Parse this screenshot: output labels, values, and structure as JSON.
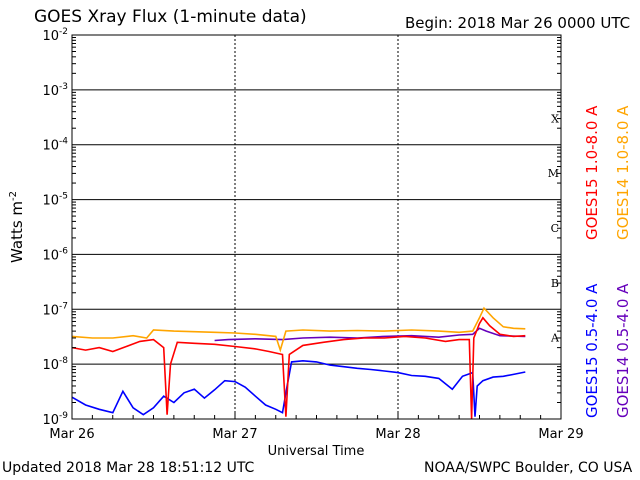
{
  "header": {
    "title": "GOES Xray Flux (1-minute data)",
    "begin": "Begin:  2018 Mar 26 0000 UTC"
  },
  "footer": {
    "updated": "Updated 2018 Mar 28 18:51:12 UTC",
    "credit": "NOAA/SWPC Boulder, CO USA"
  },
  "colors": {
    "goes15_long": "#ff0000",
    "goes14_long": "#ffa500",
    "goes15_short": "#0000ff",
    "goes14_short": "#6600bb"
  },
  "chart_data": {
    "type": "line",
    "title": "GOES Xray Flux (1-minute data)",
    "xlabel": "Universal Time",
    "ylabel": "Watts m",
    "ylabel_exponent": "-2",
    "y_scale": "log",
    "ylim": [
      1e-09,
      0.01
    ],
    "xlim": [
      "2018-03-26T00:00",
      "2018-03-29T00:00"
    ],
    "grid": true,
    "x_ticks": [
      {
        "x": "2018-03-26T00:00",
        "label": "Mar 26"
      },
      {
        "x": "2018-03-27T00:00",
        "label": "Mar 27"
      },
      {
        "x": "2018-03-28T00:00",
        "label": "Mar 28"
      },
      {
        "x": "2018-03-29T00:00",
        "label": "Mar 29"
      }
    ],
    "y_ticks": [
      {
        "y": 1e-09,
        "base": "10",
        "exp": "-9"
      },
      {
        "y": 1e-08,
        "base": "10",
        "exp": "-8"
      },
      {
        "y": 1e-07,
        "base": "10",
        "exp": "-7"
      },
      {
        "y": 1e-06,
        "base": "10",
        "exp": "-6"
      },
      {
        "y": 1e-05,
        "base": "10",
        "exp": "-5"
      },
      {
        "y": 0.0001,
        "base": "10",
        "exp": "-4"
      },
      {
        "y": 0.001,
        "base": "10",
        "exp": "-3"
      },
      {
        "y": 0.01,
        "base": "10",
        "exp": "-2"
      }
    ],
    "flare_classes": [
      {
        "label": "A",
        "lower": 1e-08,
        "upper": 1e-07
      },
      {
        "label": "B",
        "lower": 1e-07,
        "upper": 1e-06
      },
      {
        "label": "C",
        "lower": 1e-06,
        "upper": 1e-05
      },
      {
        "label": "M",
        "lower": 1e-05,
        "upper": 0.0001
      },
      {
        "label": "X",
        "lower": 0.0001,
        "upper": 0.001
      }
    ],
    "series": [
      {
        "name": "GOES15 0.5-4.0 A",
        "color": "#0000ff",
        "points": [
          [
            "2018-03-26T00:00",
            2.5e-09
          ],
          [
            "2018-03-26T02:00",
            1.8e-09
          ],
          [
            "2018-03-26T04:00",
            1.5e-09
          ],
          [
            "2018-03-26T06:00",
            1.3e-09
          ],
          [
            "2018-03-26T07:30",
            3.2e-09
          ],
          [
            "2018-03-26T09:00",
            1.6e-09
          ],
          [
            "2018-03-26T10:30",
            1.2e-09
          ],
          [
            "2018-03-26T12:00",
            1.6e-09
          ],
          [
            "2018-03-26T13:30",
            2.6e-09
          ],
          [
            "2018-03-26T15:00",
            2e-09
          ],
          [
            "2018-03-26T16:30",
            3e-09
          ],
          [
            "2018-03-26T18:00",
            3.5e-09
          ],
          [
            "2018-03-26T19:30",
            2.4e-09
          ],
          [
            "2018-03-26T21:00",
            3.4e-09
          ],
          [
            "2018-03-26T22:30",
            5e-09
          ],
          [
            "2018-03-27T00:00",
            4.8e-09
          ],
          [
            "2018-03-27T01:30",
            3.8e-09
          ],
          [
            "2018-03-27T03:00",
            2.6e-09
          ],
          [
            "2018-03-27T04:30",
            1.8e-09
          ],
          [
            "2018-03-27T06:00",
            1.5e-09
          ],
          [
            "2018-03-27T07:00",
            1.3e-09
          ],
          [
            "2018-03-27T07:40",
            4e-09
          ],
          [
            "2018-03-27T08:20",
            1.1e-08
          ],
          [
            "2018-03-27T10:00",
            1.15e-08
          ],
          [
            "2018-03-27T12:00",
            1.1e-08
          ],
          [
            "2018-03-27T14:00",
            9.6e-09
          ],
          [
            "2018-03-27T16:00",
            9e-09
          ],
          [
            "2018-03-27T18:00",
            8.4e-09
          ],
          [
            "2018-03-27T20:00",
            8e-09
          ],
          [
            "2018-03-27T22:00",
            7.5e-09
          ],
          [
            "2018-03-28T00:00",
            7e-09
          ],
          [
            "2018-03-28T02:00",
            6.2e-09
          ],
          [
            "2018-03-28T04:00",
            6e-09
          ],
          [
            "2018-03-28T06:00",
            5.5e-09
          ],
          [
            "2018-03-28T08:00",
            3.5e-09
          ],
          [
            "2018-03-28T09:30",
            6e-09
          ],
          [
            "2018-03-28T11:00",
            7e-09
          ],
          [
            "2018-03-28T11:20",
            1.1e-09
          ],
          [
            "2018-03-28T11:40",
            4e-09
          ],
          [
            "2018-03-28T12:30",
            5e-09
          ],
          [
            "2018-03-28T14:00",
            5.8e-09
          ],
          [
            "2018-03-28T15:30",
            6e-09
          ],
          [
            "2018-03-28T17:00",
            6.5e-09
          ],
          [
            "2018-03-28T18:45",
            7.2e-09
          ]
        ]
      },
      {
        "name": "GOES14 0.5-4.0 A",
        "color": "#6600bb",
        "points": [
          [
            "2018-03-26T21:00",
            2.7e-08
          ],
          [
            "2018-03-26T23:00",
            2.8e-08
          ],
          [
            "2018-03-27T03:00",
            2.9e-08
          ],
          [
            "2018-03-27T07:00",
            2.8e-08
          ],
          [
            "2018-03-27T10:00",
            3e-08
          ],
          [
            "2018-03-27T14:00",
            3.1e-08
          ],
          [
            "2018-03-27T18:00",
            3e-08
          ],
          [
            "2018-03-27T22:00",
            3.2e-08
          ],
          [
            "2018-03-28T02:00",
            3.3e-08
          ],
          [
            "2018-03-28T06:00",
            3.1e-08
          ],
          [
            "2018-03-28T09:00",
            3.4e-08
          ],
          [
            "2018-03-28T11:00",
            3.5e-08
          ],
          [
            "2018-03-28T12:00",
            4.5e-08
          ],
          [
            "2018-03-28T13:00",
            4e-08
          ],
          [
            "2018-03-28T15:00",
            3.3e-08
          ],
          [
            "2018-03-28T18:45",
            3.2e-08
          ]
        ]
      },
      {
        "name": "GOES15 1.0-8.0 A",
        "color": "#ff0000",
        "points": [
          [
            "2018-03-26T00:00",
            2e-08
          ],
          [
            "2018-03-26T02:00",
            1.8e-08
          ],
          [
            "2018-03-26T04:00",
            2e-08
          ],
          [
            "2018-03-26T06:00",
            1.7e-08
          ],
          [
            "2018-03-26T08:00",
            2.1e-08
          ],
          [
            "2018-03-26T10:00",
            2.6e-08
          ],
          [
            "2018-03-26T12:00",
            2.8e-08
          ],
          [
            "2018-03-26T13:30",
            2e-08
          ],
          [
            "2018-03-26T14:00",
            1.2e-09
          ],
          [
            "2018-03-26T14:30",
            1e-08
          ],
          [
            "2018-03-26T15:30",
            2.5e-08
          ],
          [
            "2018-03-26T18:00",
            2.4e-08
          ],
          [
            "2018-03-26T21:00",
            2.3e-08
          ],
          [
            "2018-03-27T00:00",
            2.1e-08
          ],
          [
            "2018-03-27T03:00",
            1.9e-08
          ],
          [
            "2018-03-27T05:00",
            1.7e-08
          ],
          [
            "2018-03-27T07:00",
            1.5e-08
          ],
          [
            "2018-03-27T07:30",
            1.1e-09
          ],
          [
            "2018-03-27T08:00",
            1.5e-08
          ],
          [
            "2018-03-27T10:00",
            2.2e-08
          ],
          [
            "2018-03-27T13:00",
            2.5e-08
          ],
          [
            "2018-03-27T16:00",
            2.8e-08
          ],
          [
            "2018-03-27T19:00",
            3e-08
          ],
          [
            "2018-03-27T22:00",
            3e-08
          ],
          [
            "2018-03-28T01:00",
            3.2e-08
          ],
          [
            "2018-03-28T04:00",
            3e-08
          ],
          [
            "2018-03-28T07:00",
            2.6e-08
          ],
          [
            "2018-03-28T09:00",
            2.8e-08
          ],
          [
            "2018-03-28T10:30",
            2.8e-08
          ],
          [
            "2018-03-28T10:50",
            1e-09
          ],
          [
            "2018-03-28T11:10",
            3e-08
          ],
          [
            "2018-03-28T12:00",
            5.5e-08
          ],
          [
            "2018-03-28T12:30",
            7e-08
          ],
          [
            "2018-03-28T13:30",
            5e-08
          ],
          [
            "2018-03-28T15:00",
            3.5e-08
          ],
          [
            "2018-03-28T17:00",
            3.2e-08
          ],
          [
            "2018-03-28T18:45",
            3.3e-08
          ]
        ]
      },
      {
        "name": "GOES14 1.0-8.0 A",
        "color": "#ffa500",
        "points": [
          [
            "2018-03-26T00:00",
            3.2e-08
          ],
          [
            "2018-03-26T03:00",
            3e-08
          ],
          [
            "2018-03-26T06:00",
            3e-08
          ],
          [
            "2018-03-26T09:00",
            3.3e-08
          ],
          [
            "2018-03-26T11:00",
            3e-08
          ],
          [
            "2018-03-26T12:00",
            4.2e-08
          ],
          [
            "2018-03-26T15:00",
            4e-08
          ],
          [
            "2018-03-26T18:00",
            3.9e-08
          ],
          [
            "2018-03-26T21:00",
            3.8e-08
          ],
          [
            "2018-03-27T00:00",
            3.7e-08
          ],
          [
            "2018-03-27T03:00",
            3.5e-08
          ],
          [
            "2018-03-27T06:00",
            3.2e-08
          ],
          [
            "2018-03-27T06:40",
            1.8e-08
          ],
          [
            "2018-03-27T07:30",
            4e-08
          ],
          [
            "2018-03-27T10:00",
            4.2e-08
          ],
          [
            "2018-03-27T14:00",
            4e-08
          ],
          [
            "2018-03-27T18:00",
            4.1e-08
          ],
          [
            "2018-03-27T22:00",
            4e-08
          ],
          [
            "2018-03-28T02:00",
            4.2e-08
          ],
          [
            "2018-03-28T06:00",
            4e-08
          ],
          [
            "2018-03-28T09:00",
            3.8e-08
          ],
          [
            "2018-03-28T11:00",
            4e-08
          ],
          [
            "2018-03-28T12:00",
            7e-08
          ],
          [
            "2018-03-28T12:40",
            1.05e-07
          ],
          [
            "2018-03-28T14:00",
            7e-08
          ],
          [
            "2018-03-28T15:30",
            4.8e-08
          ],
          [
            "2018-03-28T17:00",
            4.5e-08
          ],
          [
            "2018-03-28T18:45",
            4.4e-08
          ]
        ]
      }
    ]
  }
}
